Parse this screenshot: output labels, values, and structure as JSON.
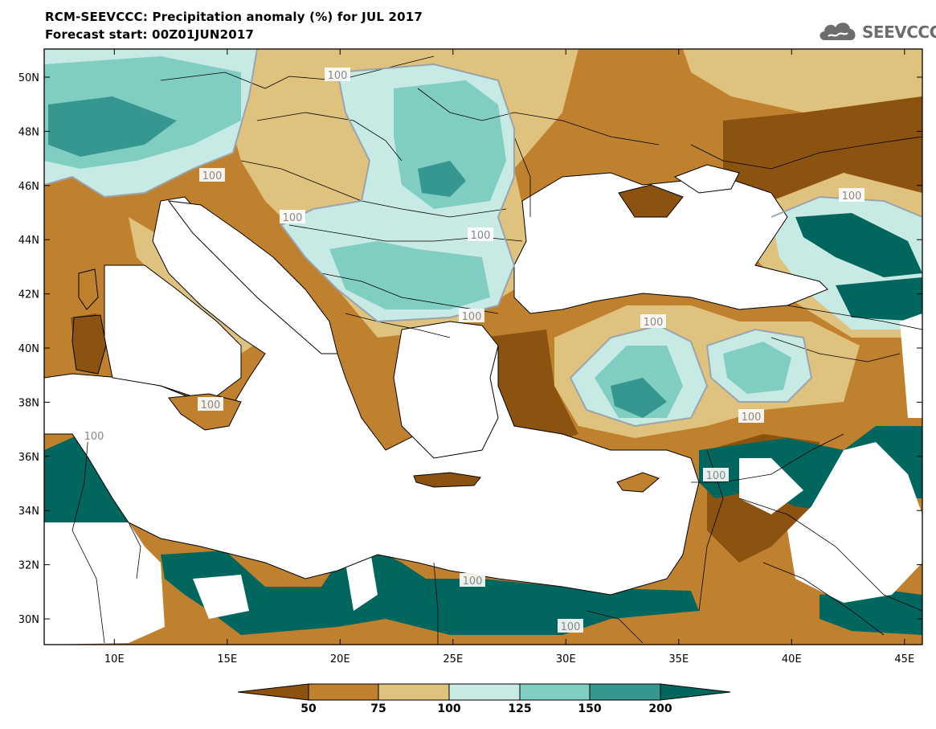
{
  "header": {
    "title": "RCM-SEEVCCC: Precipitation anomaly (%) for JUL 2017",
    "subtitle": "Forecast start: 00Z01JUN2017"
  },
  "logo": {
    "text": "SEEVCCC",
    "icon": "cloud-icon"
  },
  "map": {
    "region": "Eastern Mediterranean / Black Sea",
    "lon_range": [
      7,
      46
    ],
    "lat_range": [
      29,
      51
    ],
    "lat_ticks": [
      "50N",
      "48N",
      "46N",
      "44N",
      "42N",
      "40N",
      "38N",
      "36N",
      "34N",
      "32N",
      "30N"
    ],
    "lon_ticks": [
      "10E",
      "15E",
      "20E",
      "25E",
      "30E",
      "35E",
      "40E",
      "45E"
    ],
    "contour_label": "100",
    "colors": {
      "lt50": "#8c5210",
      "50_75": "#bf812d",
      "75_100": "#dfc27d",
      "100_125": "#c7eae5",
      "125_150": "#80cdc1",
      "150_200": "#35978f",
      "gt200": "#01665e",
      "water_or_missing": "#ffffff"
    }
  },
  "colorbar": {
    "labels": [
      "50",
      "75",
      "100",
      "125",
      "150",
      "200"
    ],
    "colors": [
      "#8c5210",
      "#bf812d",
      "#dfc27d",
      "#c7eae5",
      "#80cdc1",
      "#35978f",
      "#01665e"
    ]
  }
}
